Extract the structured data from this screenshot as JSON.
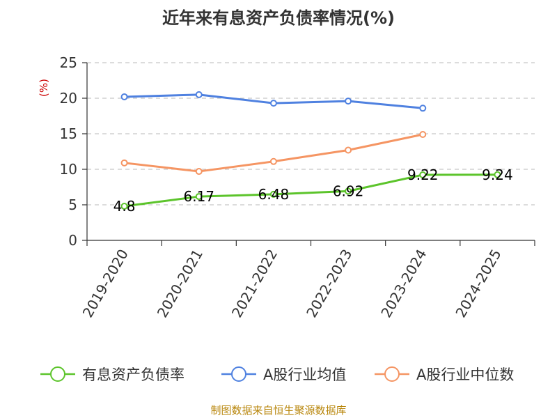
{
  "chart_data": {
    "type": "line",
    "title": "近年来有息资产负债率情况(%)",
    "ylabel": "(%)",
    "xlabel": "",
    "categories": [
      "2019-2020",
      "2020-2021",
      "2021-2022",
      "2022-2023",
      "2023-2024",
      "2024-2025"
    ],
    "ylim": [
      0,
      25
    ],
    "yticks": [
      "0",
      "5",
      "10",
      "15",
      "20",
      "25"
    ],
    "grid": true,
    "legend_position": "bottom",
    "series": [
      {
        "name": "有息资产负债率",
        "color": "#5cc42b",
        "values": [
          4.8,
          6.17,
          6.48,
          6.92,
          9.22,
          9.24
        ],
        "labels": [
          "4.8",
          "6.17",
          "6.48",
          "6.92",
          "9.22",
          "9.24"
        ]
      },
      {
        "name": "A股行业均值",
        "color": "#4f81e0",
        "values": [
          20.2,
          20.5,
          19.3,
          19.6,
          18.6,
          null
        ]
      },
      {
        "name": "A股行业中位数",
        "color": "#f59563",
        "values": [
          10.9,
          9.7,
          11.1,
          12.7,
          14.9,
          null
        ]
      }
    ]
  },
  "footer": {
    "source": "制图数据来自恒生聚源数据库"
  }
}
